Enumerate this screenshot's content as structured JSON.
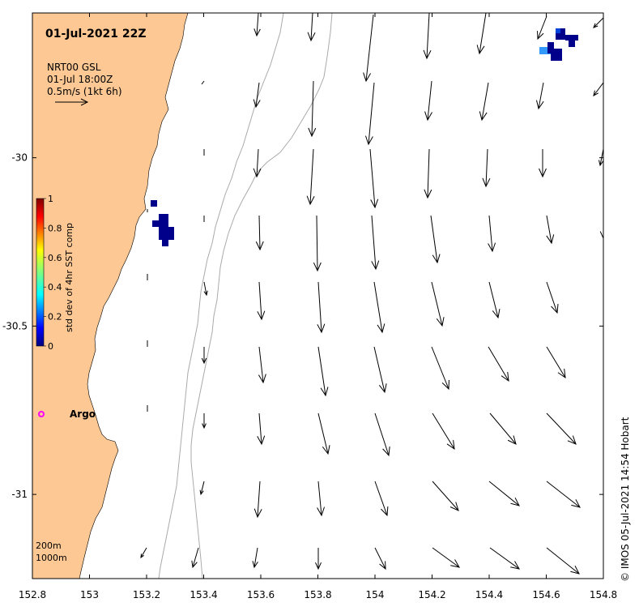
{
  "map": {
    "title": "01-Jul-2021 22Z",
    "legend_lines": [
      "NRT00 GSL",
      "01-Jul 18:00Z",
      "0.5m/s (1kt 6h)"
    ],
    "credit": "© IMOS 05-Jul-2021 14:54 Hobart",
    "argo_label": "Argo",
    "isobath_labels": [
      "200m",
      "1000m"
    ],
    "lon_ticks": [
      {
        "value": 152.8,
        "label": "152.8"
      },
      {
        "value": 153.0,
        "label": "153"
      },
      {
        "value": 153.2,
        "label": "153.2"
      },
      {
        "value": 153.4,
        "label": "153.4"
      },
      {
        "value": 153.6,
        "label": "153.6"
      },
      {
        "value": 153.8,
        "label": "153.8"
      },
      {
        "value": 154.0,
        "label": "154"
      },
      {
        "value": 154.2,
        "label": "154.2"
      },
      {
        "value": 154.4,
        "label": "154.4"
      },
      {
        "value": 154.6,
        "label": "154.6"
      },
      {
        "value": 154.8,
        "label": "154.8"
      }
    ],
    "lat_ticks": [
      {
        "value": -30.0,
        "label": "-30"
      },
      {
        "value": -30.5,
        "label": "-30.5"
      },
      {
        "value": -31.0,
        "label": "-31"
      }
    ],
    "lon_range": [
      152.8,
      154.8
    ],
    "lat_range": [
      -31.25,
      -29.57
    ],
    "colorbar": {
      "title": "std dev of 4hr SST comp",
      "ticks": [
        "0",
        "0.2",
        "0.4",
        "0.6",
        "0.8",
        "1"
      ],
      "range": [
        0,
        1
      ]
    },
    "colors": {
      "land": "#fdc893",
      "isobath": "#aaaaaa",
      "argo": "#ff00ff",
      "sst_dark": "#00008b",
      "sst_mid": "#0044dd",
      "sst_light": "#3399ff"
    }
  }
}
